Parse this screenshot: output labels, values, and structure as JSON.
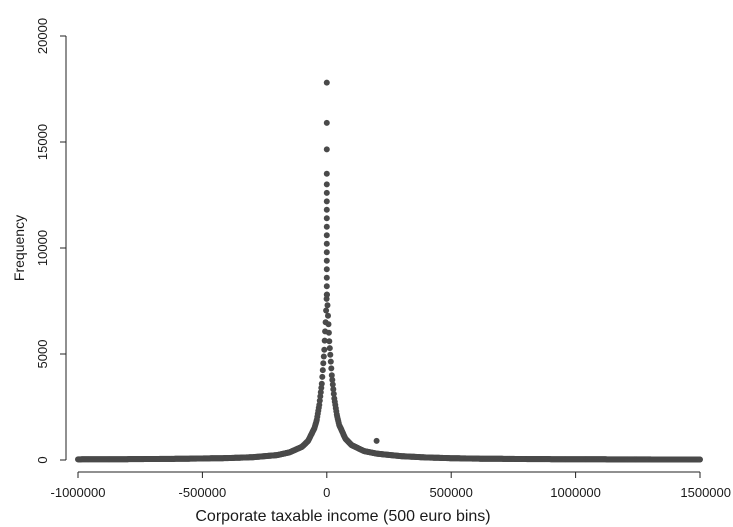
{
  "chart_data": {
    "type": "scatter",
    "title": "",
    "xlabel": "Corporate taxable income (500 euro bins)",
    "ylabel": "Frequency",
    "xlim": [
      -1000000,
      1500000
    ],
    "ylim": [
      0,
      20000
    ],
    "x_ticks": [
      -1000000,
      -500000,
      0,
      500000,
      1000000,
      1500000
    ],
    "x_tick_labels": [
      "-1000000",
      "-500000",
      "0",
      "500000",
      "1000000",
      "1500000"
    ],
    "y_ticks": [
      0,
      5000,
      10000,
      15000,
      20000
    ],
    "y_tick_labels": [
      "0",
      "5000",
      "10000",
      "15000",
      "20000"
    ],
    "grid": false,
    "legend": "none",
    "marker_color": "#4a4a4a",
    "series": [
      {
        "points_peak": [
          [
            0,
            17800
          ],
          [
            0,
            15900
          ],
          [
            0,
            14650
          ],
          [
            0,
            13500
          ],
          [
            0,
            13000
          ],
          [
            0,
            12600
          ],
          [
            0,
            12200
          ],
          [
            0,
            11800
          ],
          [
            0,
            11400
          ],
          [
            0,
            11000
          ],
          [
            0,
            10600
          ],
          [
            0,
            10200
          ],
          [
            0,
            9800
          ],
          [
            0,
            9400
          ],
          [
            0,
            9000
          ],
          [
            0,
            8600
          ],
          [
            0,
            8200
          ],
          [
            0,
            7800
          ]
        ],
        "curve_left": [
          [
            -1000000,
            30
          ],
          [
            -800000,
            40
          ],
          [
            -600000,
            55
          ],
          [
            -400000,
            90
          ],
          [
            -300000,
            130
          ],
          [
            -200000,
            230
          ],
          [
            -150000,
            360
          ],
          [
            -100000,
            620
          ],
          [
            -75000,
            900
          ],
          [
            -50000,
            1500
          ],
          [
            -40000,
            1900
          ],
          [
            -30000,
            2600
          ],
          [
            -20000,
            3600
          ],
          [
            -10000,
            5200
          ],
          [
            -5000,
            6500
          ],
          [
            -1000,
            7600
          ]
        ],
        "curve_right": [
          [
            1000,
            7800
          ],
          [
            5000,
            6800
          ],
          [
            10000,
            5600
          ],
          [
            20000,
            4000
          ],
          [
            30000,
            2900
          ],
          [
            40000,
            2150
          ],
          [
            50000,
            1650
          ],
          [
            75000,
            1000
          ],
          [
            100000,
            700
          ],
          [
            150000,
            420
          ],
          [
            200000,
            300
          ],
          [
            300000,
            180
          ],
          [
            400000,
            120
          ],
          [
            500000,
            85
          ],
          [
            600000,
            65
          ],
          [
            800000,
            45
          ],
          [
            1000000,
            35
          ],
          [
            1200000,
            28
          ],
          [
            1500000,
            22
          ]
        ],
        "outliers": [
          [
            200000,
            900
          ]
        ]
      }
    ]
  }
}
